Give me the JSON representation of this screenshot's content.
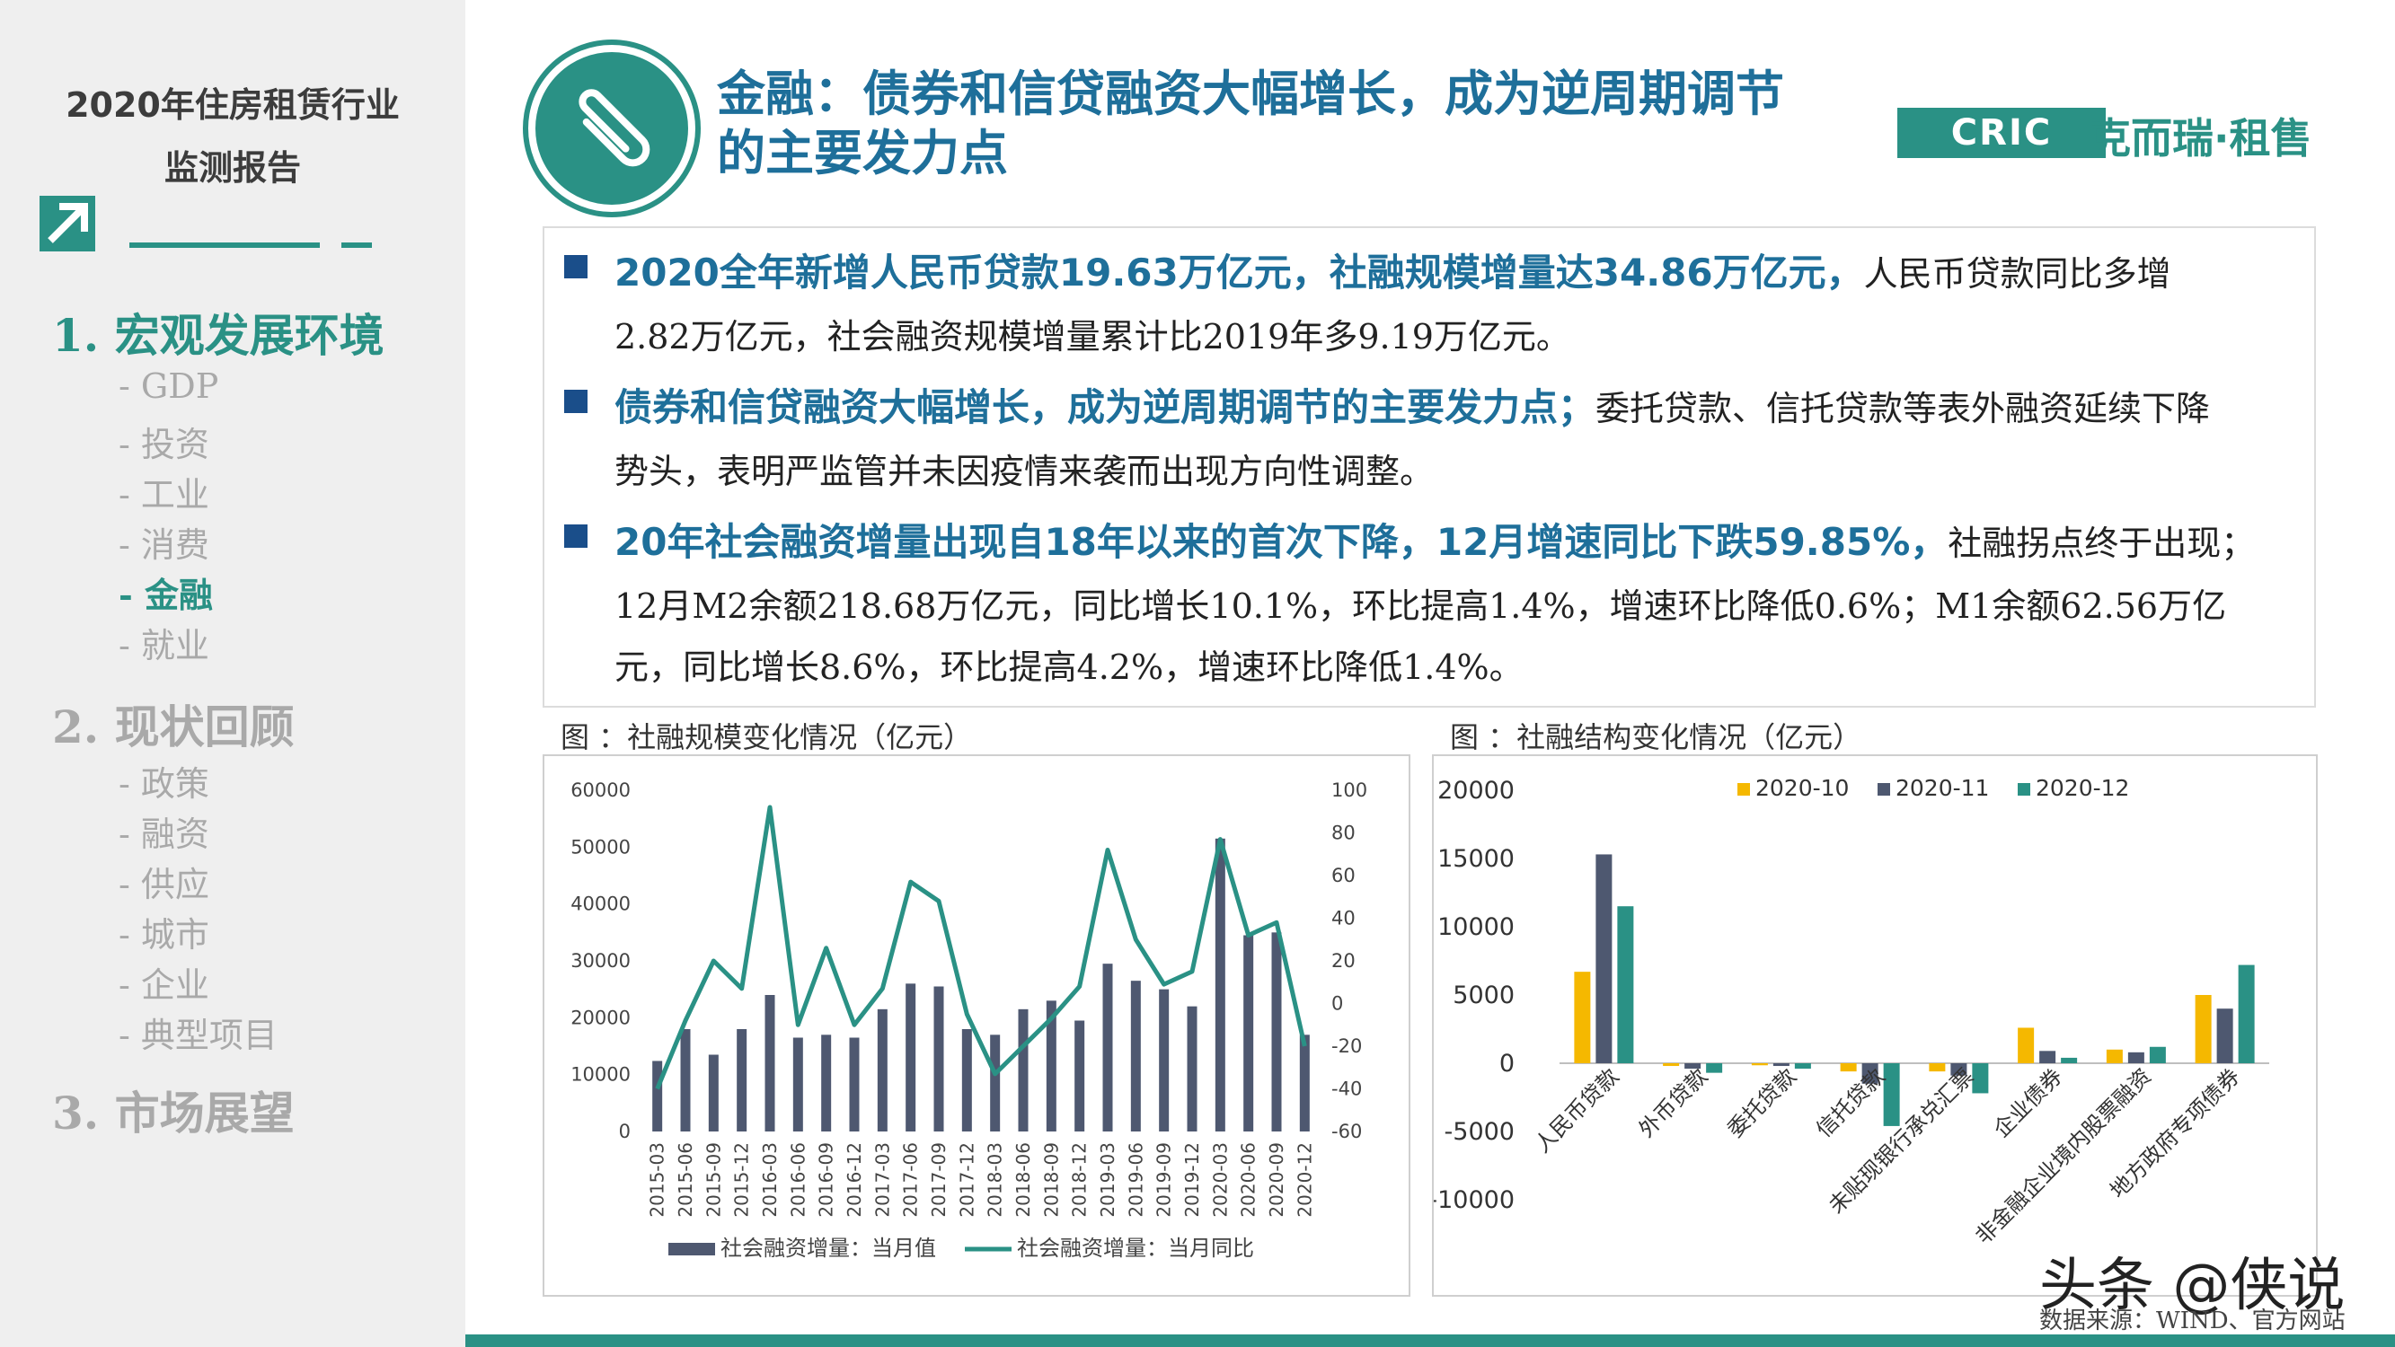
{
  "sidebar": {
    "title_line1": "2020年住房租赁行业",
    "title_line2": "监测报告",
    "sections": [
      {
        "label": "1.  宏观发展环境",
        "active": true,
        "items": [
          "-  GDP",
          "-  投资",
          "-  工业",
          "-  消费",
          "-  金融",
          "-  就业"
        ],
        "active_item": 4
      },
      {
        "label": "2.  现状回顾",
        "active": false,
        "items": [
          "-  政策",
          "-  融资",
          "-  供应",
          "-  城市",
          "-  企业",
          "-  典型项目"
        ]
      },
      {
        "label": "3.  市场展望",
        "active": false,
        "items": []
      }
    ]
  },
  "header": {
    "title_line1": "金融：债券和信贷融资大幅增长，成为逆周期调节",
    "title_line2": "的主要发力点",
    "logo_box": "CRIC",
    "logo_name": "克而瑞·租售"
  },
  "bullets": [
    {
      "lines": [
        {
          "hl": "2020全年新增人民币贷款19.63万亿元，社融规模增量达34.86万亿元，",
          "text": "人民币贷款同比多增"
        },
        {
          "hl": "",
          "text": "2.82万亿元，社会融资规模增量累计比2019年多9.19万亿元。"
        }
      ]
    },
    {
      "lines": [
        {
          "hl": "债券和信贷融资大幅增长，成为逆周期调节的主要发力点；",
          "text": "委托贷款、信托贷款等表外融资延续下降"
        },
        {
          "hl": "",
          "text": "势头，表明严监管并未因疫情来袭而出现方向性调整。"
        }
      ]
    },
    {
      "lines": [
        {
          "hl": "20年社会融资增量出现自18年以来的首次下降，12月增速同比下跌59.85%，",
          "text": "社融拐点终于出现；"
        },
        {
          "hl": "",
          "text": "12月M2余额218.68万亿元，同比增长10.1%，环比提高1.4%，增速环比降低0.6%；M1余额62.56万亿"
        },
        {
          "hl": "",
          "text": "元，同比增长8.6%，环比提高4.2%，增速环比降低1.4%。"
        }
      ]
    }
  ],
  "captions": {
    "left": "图 ：社融规模变化情况（亿元）",
    "right": "图 ：社融结构变化情况（亿元）"
  },
  "chart_data": [
    {
      "type": "bar",
      "categories": [
        "2015-03",
        "2015-06",
        "2015-09",
        "2015-12",
        "2016-03",
        "2016-06",
        "2016-09",
        "2016-12",
        "2017-03",
        "2017-06",
        "2017-09",
        "2017-12",
        "2018-03",
        "2018-06",
        "2018-09",
        "2018-12",
        "2019-03",
        "2019-06",
        "2019-09",
        "2019-12",
        "2020-03",
        "2020-06",
        "2020-09",
        "2020-12"
      ],
      "series": [
        {
          "name": "社会融资增量：当月值",
          "type": "bar",
          "axis": "left",
          "values": [
            12400,
            18000,
            13500,
            18000,
            24000,
            16500,
            17000,
            16500,
            21500,
            26000,
            25500,
            18000,
            17000,
            21500,
            23000,
            19500,
            29500,
            26500,
            25000,
            22000,
            51500,
            34500,
            35000,
            17000
          ]
        },
        {
          "name": "社会融资增量：当月同比",
          "type": "line",
          "axis": "right",
          "values": [
            -40,
            -8,
            20,
            7,
            92,
            -10,
            26,
            -10,
            7,
            57,
            48,
            -5,
            -33,
            -20,
            -7,
            8,
            72,
            30,
            9,
            15,
            77,
            32,
            38,
            -20
          ]
        }
      ],
      "y_left": {
        "ticks": [
          "0",
          "10000",
          "20000",
          "30000",
          "40000",
          "50000",
          "60000"
        ],
        "range": [
          0,
          60000
        ]
      },
      "y_right": {
        "ticks": [
          "-60",
          "-40",
          "-20",
          "0",
          "20",
          "40",
          "60",
          "80",
          "100"
        ],
        "range": [
          -60,
          100
        ]
      },
      "colors": {
        "bar": "#4e5870",
        "line": "#2a9185"
      },
      "legend": "bottom"
    },
    {
      "type": "bar",
      "categories": [
        "人民币贷款",
        "外币贷款",
        "委托贷款",
        "信托贷款",
        "未贴现银行承兑汇票",
        "企业债券",
        "非金融企业境内股票融资",
        "地方政府专项债券"
      ],
      "series": [
        {
          "name": "2020-10",
          "values": [
            6700,
            -200,
            -150,
            -600,
            -600,
            2600,
            1000,
            5000
          ]
        },
        {
          "name": "2020-11",
          "values": [
            15300,
            -400,
            -200,
            -1500,
            -900,
            900,
            800,
            4000
          ]
        },
        {
          "name": "2020-12",
          "values": [
            11500,
            -700,
            -400,
            -4600,
            -2200,
            400,
            1200,
            7200
          ]
        }
      ],
      "y": {
        "ticks": [
          "-10000",
          "-5000",
          "0",
          "5000",
          "10000",
          "15000",
          "20000"
        ],
        "range": [
          -10000,
          20000
        ]
      },
      "colors": {
        "2020-10": "#f5b800",
        "2020-11": "#4e5870",
        "2020-12": "#2a9185"
      },
      "legend": "top"
    }
  ],
  "footer": {
    "brand": "头条 @侠说",
    "source": "数据来源：WIND、官方网站"
  }
}
